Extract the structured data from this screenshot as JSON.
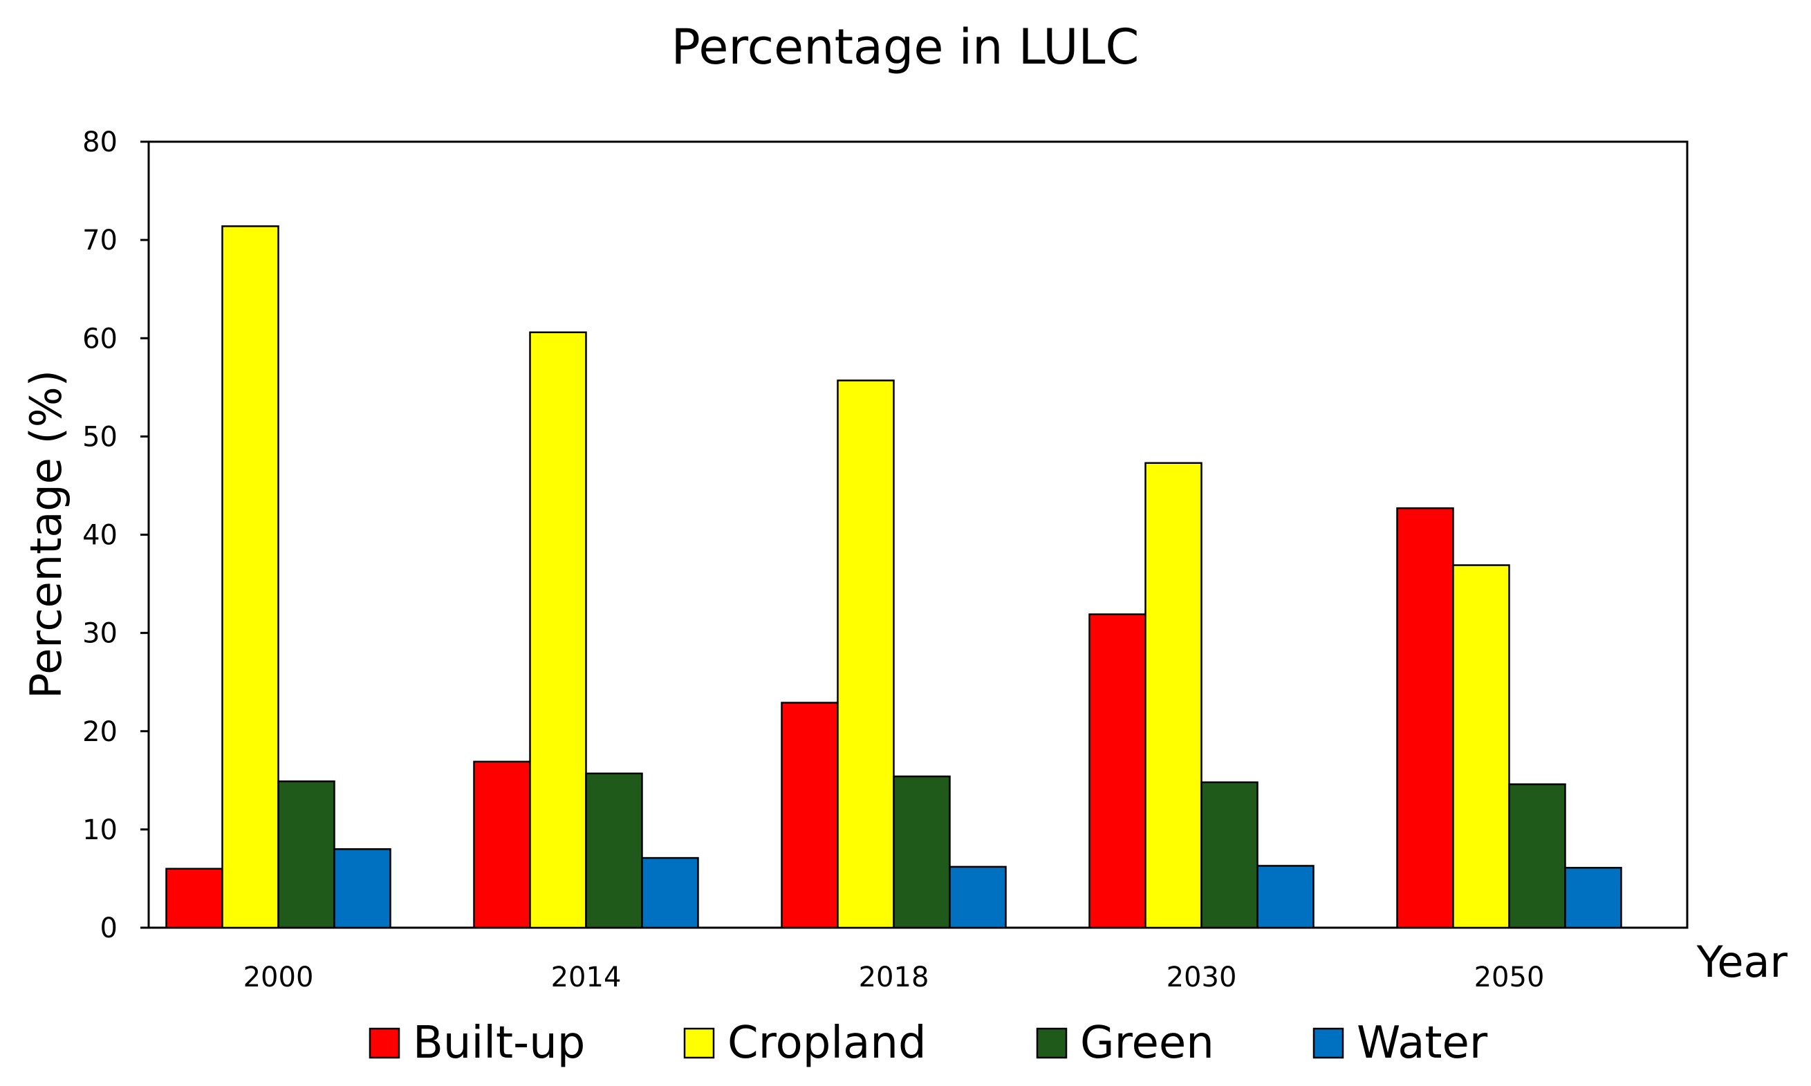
{
  "chart_data": {
    "type": "bar",
    "title": "Percentage in LULC",
    "xlabel": "Year",
    "ylabel": "Percentage (%)",
    "categories": [
      "2000",
      "2014",
      "2018",
      "2030",
      "2050"
    ],
    "ylim": [
      0,
      80
    ],
    "yticks": [
      0,
      10,
      20,
      30,
      40,
      50,
      60,
      70,
      80
    ],
    "grid": false,
    "legend_position": "bottom",
    "series": [
      {
        "name": "Built-up",
        "color": "#ff0000",
        "values": [
          6.0,
          16.9,
          22.9,
          31.9,
          42.7
        ]
      },
      {
        "name": "Cropland",
        "color": "#ffff00",
        "values": [
          71.4,
          60.6,
          55.7,
          47.3,
          36.9
        ]
      },
      {
        "name": "Green",
        "color": "#1f5a1a",
        "values": [
          14.9,
          15.7,
          15.4,
          14.8,
          14.6
        ]
      },
      {
        "name": "Water",
        "color": "#0070c0",
        "values": [
          8.0,
          7.1,
          6.2,
          6.3,
          6.1
        ]
      }
    ]
  }
}
